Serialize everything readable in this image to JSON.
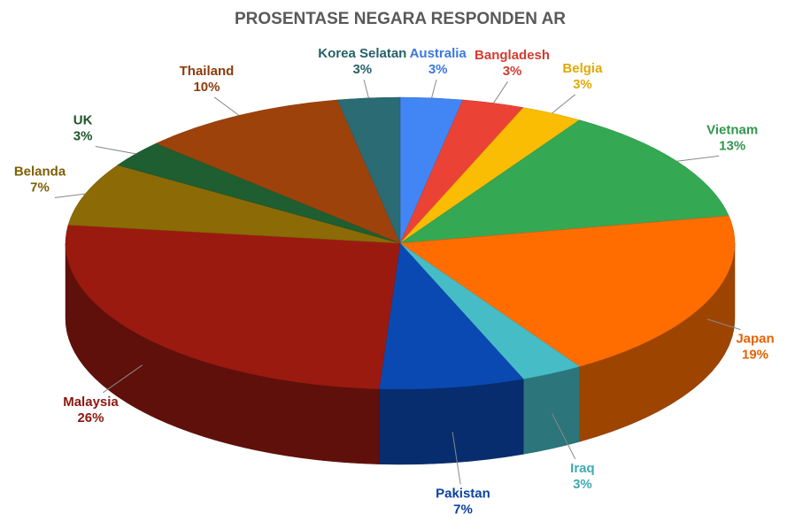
{
  "chart_data": {
    "type": "pie3d",
    "title": "PROSENTASE NEGARA RESPONDEN AR",
    "categories": [
      "Australia",
      "Bangladesh",
      "Belgia",
      "Vietnam",
      "Japan",
      "Iraq",
      "Pakistan",
      "Malaysia",
      "Belanda",
      "UK",
      "Thailand",
      "Korea Selatan"
    ],
    "values": [
      3,
      3,
      3,
      13,
      19,
      3,
      7,
      26,
      7,
      3,
      10,
      3
    ],
    "value_labels": [
      "3%",
      "3%",
      "3%",
      "13%",
      "19%",
      "3%",
      "7%",
      "26%",
      "7%",
      "3%",
      "10%",
      "3%"
    ],
    "colors": [
      "#4285f4",
      "#ea4335",
      "#fbbc04",
      "#34a853",
      "#ff6d01",
      "#46bdc6",
      "#0b49b2",
      "#9b1a10",
      "#8c6a06",
      "#1e5e30",
      "#9e420c",
      "#2b6b74"
    ]
  }
}
